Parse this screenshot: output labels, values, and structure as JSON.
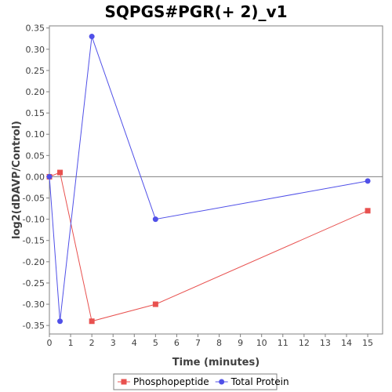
{
  "chart_data": {
    "type": "line",
    "title": "SQPGS#PGR(+ 2)_v1",
    "xlabel": "Time (minutes)",
    "ylabel": "log2(dDAVP/Control)",
    "xlim": [
      0,
      15.7
    ],
    "ylim": [
      -0.37,
      0.355
    ],
    "xticks": [
      0,
      1,
      2,
      3,
      4,
      5,
      6,
      7,
      8,
      9,
      10,
      11,
      12,
      13,
      14,
      15
    ],
    "yticks": [
      -0.35,
      -0.3,
      -0.25,
      -0.2,
      -0.15,
      -0.1,
      -0.05,
      0.0,
      0.05,
      0.1,
      0.15,
      0.2,
      0.25,
      0.3,
      0.35
    ],
    "zero_line": true,
    "grid": false,
    "legend_position": "bottom",
    "series": [
      {
        "name": "Phosphopeptide",
        "color": "#e8514f",
        "marker": "square",
        "x": [
          0,
          0.5,
          2,
          5,
          15
        ],
        "y": [
          0.0,
          0.01,
          -0.34,
          -0.3,
          -0.08
        ]
      },
      {
        "name": "Total Protein",
        "color": "#5050e8",
        "marker": "circle",
        "x": [
          0,
          0.5,
          2,
          5,
          15
        ],
        "y": [
          0.0,
          -0.34,
          0.33,
          -0.1,
          -0.01
        ]
      }
    ]
  }
}
